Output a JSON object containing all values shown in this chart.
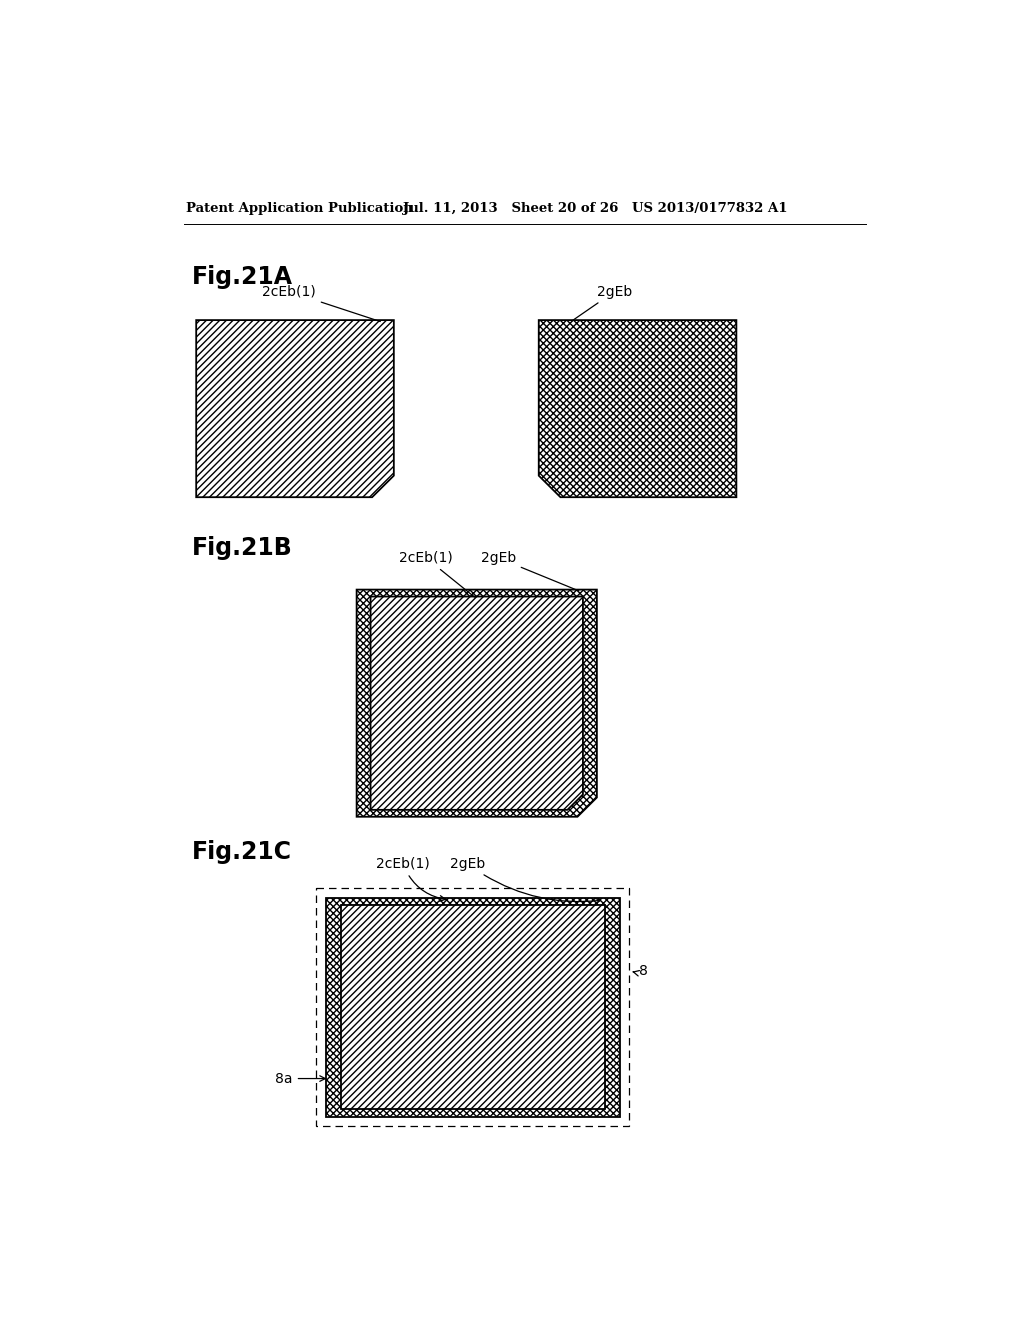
{
  "bg_color": "#ffffff",
  "header_left": "Patent Application Publication",
  "header_mid": "Jul. 11, 2013   Sheet 20 of 26",
  "header_right": "US 2013/0177832 A1",
  "label_2cEb1": "2cEb(1)",
  "label_2gEb": "2gEb",
  "label_8": "8",
  "label_8a": "8a",
  "line_color": "#000000",
  "face_color": "#ffffff"
}
